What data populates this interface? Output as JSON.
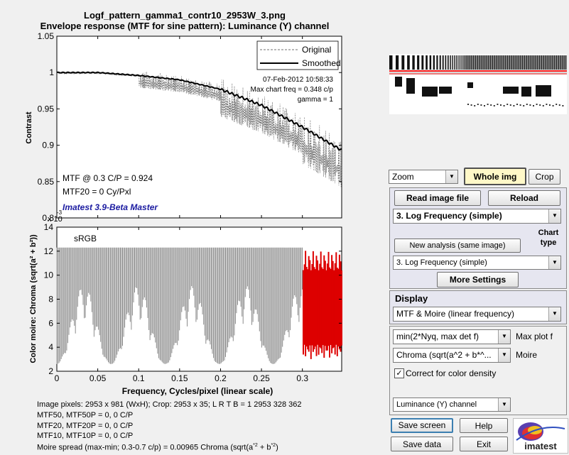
{
  "title_line1": "Logf_pattern_gamma1_contr10_2953W_3.png",
  "title_line2": "Envelope response (MTF for sine pattern):  Luminance (Y) channel",
  "top_plot": {
    "ylabel": "Contrast",
    "yticks": [
      "1.05",
      "1",
      "0.95",
      "0.9",
      "0.85",
      "0.8"
    ],
    "legend_original": "Original",
    "legend_smoothed": "Smoothed",
    "annotation_date": "07-Feb-2012 10:58:33",
    "annotation_maxfreq": "Max chart freq = 0.348 c/p",
    "annotation_gamma": "gamma = 1",
    "mtf_at": "MTF @ 0.3 C/P = 0.924",
    "mtf20": "MTF20 = 0 Cy/Pxl",
    "version": "Imatest 3.9-Beta Master",
    "exponent": "x 10",
    "exponent_power": "-3",
    "colors": {
      "smoothed": "#000000",
      "original": "#707070",
      "version": "#1a1aa0"
    }
  },
  "bottom_plot": {
    "label": "sRGB",
    "ylabel": "Color moire: Chroma (sqrt(a² + b²))",
    "yticks": [
      "14",
      "12",
      "10",
      "8",
      "6",
      "4",
      "2"
    ],
    "xticks": [
      "0",
      "0.05",
      "0.1",
      "0.15",
      "0.2",
      "0.25",
      "0.3"
    ],
    "xlabel": "Frequency, Cycles/pixel (linear scale)",
    "colors": {
      "below": "#8c8c8c",
      "above": "#dd0000"
    }
  },
  "chart_data": {
    "type": "line",
    "series": [
      {
        "name": "Original",
        "x": [
          0,
          0.05,
          0.1,
          0.15,
          0.2,
          0.25,
          0.3,
          0.34
        ],
        "y": [
          1.0,
          1.0,
          0.995,
          0.99,
          0.975,
          0.955,
          0.92,
          0.89
        ]
      },
      {
        "name": "Smoothed",
        "x": [
          0,
          0.05,
          0.1,
          0.15,
          0.2,
          0.25,
          0.3,
          0.348
        ],
        "y": [
          1.0,
          1.0,
          0.996,
          0.99,
          0.977,
          0.955,
          0.925,
          0.893
        ]
      }
    ],
    "ylim": [
      0.8,
      1.05
    ],
    "xlim": [
      0,
      0.348
    ],
    "moire": {
      "ylim": [
        2,
        14
      ],
      "upper": 12.3,
      "lower_min": 2.6,
      "red_start": 0.3
    }
  },
  "info_lines": [
    "Image pixels: 2953 x 981 (WxH);   Crop: 2953 x 35;  L R T B = 1 2953 328 362",
    "MTF50, MTF50P = 0, 0 C/P",
    "MTF20, MTF20P = 0, 0 C/P",
    "MTF10, MTF10P = 0, 0 C/P"
  ],
  "moire_spread": "Moire spread (max-min; 0.3-0.7 c/p) = 0.00965 Chroma (sqrt(a",
  "moire_spread_end": ")",
  "controls": {
    "zoom": "Zoom",
    "whole_img": "Whole img",
    "crop": "Crop",
    "read_image": "Read image file",
    "reload": "Reload",
    "chart_select": "3. Log Frequency (simple)",
    "chart_type": "Chart type",
    "new_analysis": "New analysis (same image)",
    "chart_select2": "3. Log Frequency (simple)",
    "more_settings": "More Settings",
    "display": "Display",
    "display_select": "MTF & Moire (linear frequency)",
    "max_plot_select": "min(2*Nyq, max det f)",
    "max_plot_label": "Max plot f",
    "moire_select": "Chroma (sqrt(a^2 + b*^...",
    "moire_label": "Moire",
    "correct_color": "Correct for color density",
    "channel_select": "Luminance (Y) channel",
    "save_screen": "Save screen",
    "help": "Help",
    "save_data": "Save data",
    "exit": "Exit",
    "logo_text": "imatest"
  }
}
